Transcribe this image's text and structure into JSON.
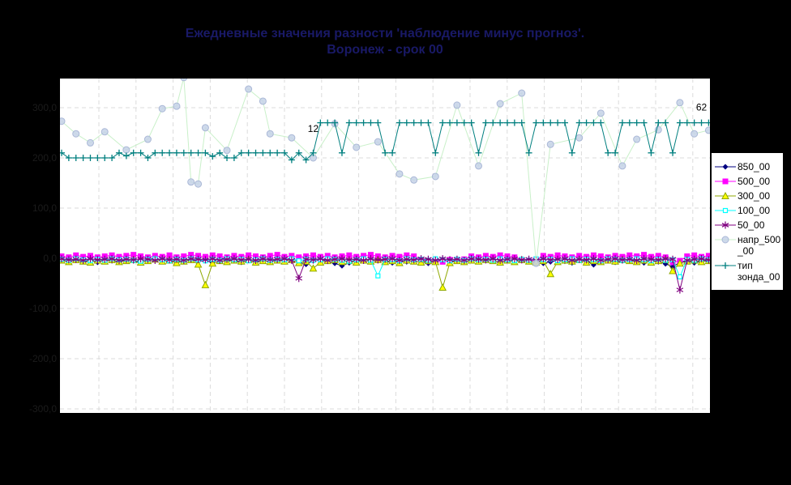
{
  "title": {
    "line1": "Ежедневные значения разности 'наблюдение минус прогноз'.",
    "line2": "Воронеж - срок 00"
  },
  "colors": {
    "chart_background": "#000000",
    "plot_background": "#FFFFFF",
    "gridline": "#DBDBDB",
    "title_text": "#191966",
    "axis_tick_text": "#1B1B1B",
    "annotation_text": "#000000",
    "legend_background": "#FFFFFF",
    "legend_border": "#000000",
    "series_850": "#000080",
    "series_500": "#FF00FF",
    "series_300_marker": "#FFFF00",
    "series_300_line": "#8FA800",
    "series_100": "#00FFFF",
    "series_50": "#800080",
    "series_napr_marker": "#C6D2E8",
    "series_napr_line": "#C9F0C9",
    "series_tip": "#007F7F"
  },
  "axis": {
    "y_tick_labels": [
      "300,0",
      "200,0",
      "100,0",
      "0,0",
      "-100,0",
      "-200,0",
      "-300,0"
    ],
    "y_tick_values": [
      300,
      200,
      100,
      0,
      -100,
      -200,
      -300
    ],
    "y_min": -308,
    "y_max": 358,
    "grid": "dashed"
  },
  "annotations": [
    {
      "text": "12",
      "day": 36,
      "value": 252
    },
    {
      "text": "62",
      "day": 90,
      "value": 294
    }
  ],
  "chart_data": {
    "type": "line",
    "title": "Ежедневные значения разности 'наблюдение минус прогноз'. Воронеж - срок 00",
    "xlabel": "",
    "ylabel": "",
    "x_unit": "day_index_1_to_91",
    "n_days": 91,
    "ylim": [
      -308,
      358
    ],
    "legend_position": "right",
    "series": [
      {
        "name": "850_00",
        "marker": "diamond",
        "color": "#000080",
        "line_color": "#000080",
        "values": [
          -3,
          -7,
          -2,
          -6,
          -4,
          -8,
          -3,
          -5,
          -7,
          -2,
          -5,
          -9,
          -4,
          2,
          -6,
          -3,
          -8,
          -5,
          -2,
          -6,
          -4,
          -9,
          1,
          -2,
          -5,
          -8,
          -3,
          -6,
          -4,
          -7,
          -2,
          -5,
          2,
          -8,
          -12,
          -5,
          -2,
          -6,
          -10,
          -15,
          -9,
          -5,
          -3,
          -7,
          -2,
          -6,
          -9,
          -4,
          -7,
          2,
          -6,
          -10,
          -5,
          -2,
          -7,
          -4,
          -8,
          -3,
          -6,
          1,
          -5,
          -9,
          -4,
          -7,
          -3,
          -6,
          -2,
          -10,
          -7,
          -4,
          -6,
          -9,
          -3,
          -5,
          -13,
          -7,
          -4,
          -8,
          -5,
          -2,
          -6,
          -9,
          -3,
          -7,
          -11,
          -17,
          -8,
          -4,
          -9,
          -6,
          -3
        ]
      },
      {
        "name": "500_00",
        "marker": "square",
        "color": "#FF00FF",
        "line_color": "#FF00FF",
        "values": [
          4,
          2,
          6,
          3,
          5,
          2,
          4,
          6,
          3,
          5,
          7,
          4,
          2,
          5,
          3,
          6,
          2,
          4,
          7,
          5,
          3,
          6,
          4,
          2,
          5,
          3,
          6,
          4,
          2,
          5,
          7,
          3,
          5,
          2,
          4,
          6,
          3,
          5,
          2,
          4,
          6,
          3,
          5,
          7,
          4,
          2,
          5,
          3,
          6,
          4,
          -3,
          -6,
          -4,
          -7,
          -3,
          -5,
          -2,
          4,
          2,
          5,
          3,
          6,
          4,
          2,
          -4,
          -6,
          -3,
          5,
          3,
          6,
          4,
          2,
          5,
          3,
          6,
          4,
          2,
          5,
          3,
          6,
          4,
          7,
          3,
          5,
          2,
          -8,
          -5,
          4,
          6,
          3,
          5
        ]
      },
      {
        "name": "300_00",
        "marker": "triangle",
        "color": "#FFFF00",
        "line_color": "#8FA800",
        "values": [
          -4,
          -7,
          -3,
          -6,
          -8,
          -4,
          -6,
          -3,
          -7,
          -5,
          -3,
          -8,
          -5,
          -2,
          -6,
          -4,
          -9,
          -6,
          -3,
          -12,
          -53,
          -10,
          -5,
          -7,
          -4,
          -6,
          -3,
          -8,
          -5,
          -7,
          -4,
          -6,
          -3,
          -9,
          -6,
          -20,
          -8,
          -5,
          -3,
          -7,
          -5,
          -8,
          -4,
          -6,
          -3,
          -7,
          -5,
          -9,
          -4,
          -6,
          -8,
          -5,
          -7,
          -58,
          -9,
          -5,
          -7,
          -4,
          -6,
          -3,
          -5,
          -8,
          -4,
          -7,
          -3,
          -6,
          -8,
          -5,
          -31,
          -7,
          -4,
          -6,
          -3,
          -8,
          -5,
          -7,
          -4,
          -6,
          -3,
          -5,
          -7,
          -4,
          -8,
          -5,
          -3,
          -25,
          -10,
          -6,
          -4,
          -7,
          -5
        ]
      },
      {
        "name": "100_00",
        "marker": "square-open",
        "color": "#00FFFF",
        "line_color": "#00FFFF",
        "values": [
          -2,
          -4,
          -1,
          -3,
          -5,
          -2,
          -4,
          -1,
          -3,
          -2,
          -4,
          -6,
          -2,
          -1,
          -3,
          -5,
          -2,
          -4,
          -1,
          -3,
          -5,
          -2,
          -4,
          -1,
          -3,
          -2,
          -5,
          -3,
          -1,
          -4,
          -2,
          -3,
          -1,
          -5,
          -2,
          -4,
          -3,
          -1,
          -2,
          -4,
          -6,
          -3,
          -1,
          -4,
          -35,
          -2,
          -3,
          -5,
          -1,
          -3,
          -2,
          -4,
          -1,
          -3,
          -5,
          -2,
          -4,
          -1,
          -3,
          -2,
          -4,
          -1,
          -3,
          -5,
          -2,
          -4,
          -1,
          -3,
          -2,
          -5,
          -3,
          -1,
          -4,
          -2,
          -3,
          -5,
          -1,
          -2,
          -4,
          -3,
          -1,
          -3,
          -5,
          -2,
          -4,
          -3,
          -37,
          -2,
          -4,
          -1,
          -3
        ]
      },
      {
        "name": "50_00",
        "marker": "asterisk",
        "color": "#800080",
        "line_color": "#800080",
        "values": [
          -1,
          -3,
          -2,
          -4,
          -1,
          -3,
          -2,
          -1,
          -4,
          -2,
          -3,
          -1,
          -2,
          -4,
          -1,
          -3,
          -2,
          -4,
          -1,
          -2,
          -3,
          -1,
          -4,
          -2,
          -1,
          -3,
          -2,
          -4,
          -1,
          -3,
          -2,
          -1,
          -4,
          -40,
          -2,
          -3,
          -1,
          -4,
          -2,
          -1,
          -3,
          -2,
          -4,
          -1,
          -3,
          -2,
          -1,
          -4,
          -2,
          -3,
          -1,
          -2,
          -4,
          -1,
          -3,
          -2,
          -4,
          -1,
          -2,
          -3,
          -1,
          -4,
          -2,
          -1,
          -3,
          -2,
          -4,
          -1,
          -3,
          -2,
          -1,
          -4,
          -2,
          -3,
          -1,
          -4,
          -2,
          -1,
          -3,
          -2,
          -4,
          -1,
          -2,
          -3,
          -1,
          -2,
          -63,
          -4,
          -2,
          -1,
          -3
        ]
      },
      {
        "name": "напр_500_00",
        "marker": "circle",
        "color": "#C6D2E8",
        "line_color": "#C9F0C9",
        "values": [
          273,
          null,
          248,
          null,
          230,
          null,
          252,
          null,
          null,
          216,
          null,
          null,
          237,
          null,
          298,
          null,
          303,
          360,
          152,
          148,
          260,
          null,
          null,
          215,
          null,
          null,
          337,
          null,
          313,
          248,
          null,
          null,
          240,
          null,
          null,
          200,
          null,
          null,
          268,
          null,
          null,
          221,
          null,
          null,
          232,
          null,
          null,
          168,
          null,
          156,
          null,
          null,
          163,
          null,
          null,
          305,
          null,
          null,
          184,
          null,
          null,
          308,
          null,
          null,
          329,
          null,
          -10,
          null,
          227,
          null,
          null,
          null,
          240,
          null,
          null,
          289,
          null,
          null,
          184,
          null,
          237,
          null,
          null,
          256,
          null,
          null,
          310,
          null,
          248,
          null,
          255
        ]
      },
      {
        "name": "тип зонда_00",
        "marker": "plus",
        "color": "#007F7F",
        "line_color": "#007F7F",
        "values": [
          210,
          200,
          200,
          200,
          200,
          200,
          200,
          200,
          210,
          204,
          210,
          210,
          200,
          210,
          210,
          210,
          210,
          210,
          210,
          210,
          210,
          203,
          210,
          200,
          200,
          210,
          210,
          210,
          210,
          210,
          210,
          210,
          196,
          210,
          196,
          210,
          270,
          270,
          270,
          210,
          270,
          270,
          270,
          270,
          270,
          210,
          210,
          270,
          270,
          270,
          270,
          270,
          210,
          270,
          270,
          270,
          270,
          270,
          210,
          270,
          270,
          270,
          270,
          270,
          270,
          210,
          270,
          270,
          270,
          270,
          270,
          210,
          270,
          270,
          270,
          270,
          210,
          210,
          270,
          270,
          270,
          270,
          210,
          270,
          270,
          210,
          270,
          270,
          270,
          270,
          270
        ]
      }
    ]
  },
  "legend": {
    "items": [
      {
        "label": "850_00"
      },
      {
        "label": "500_00"
      },
      {
        "label": "300_00"
      },
      {
        "label": "100_00"
      },
      {
        "label": "50_00"
      },
      {
        "label": "напр_500_00"
      },
      {
        "label": "тип зонда_00"
      }
    ]
  }
}
